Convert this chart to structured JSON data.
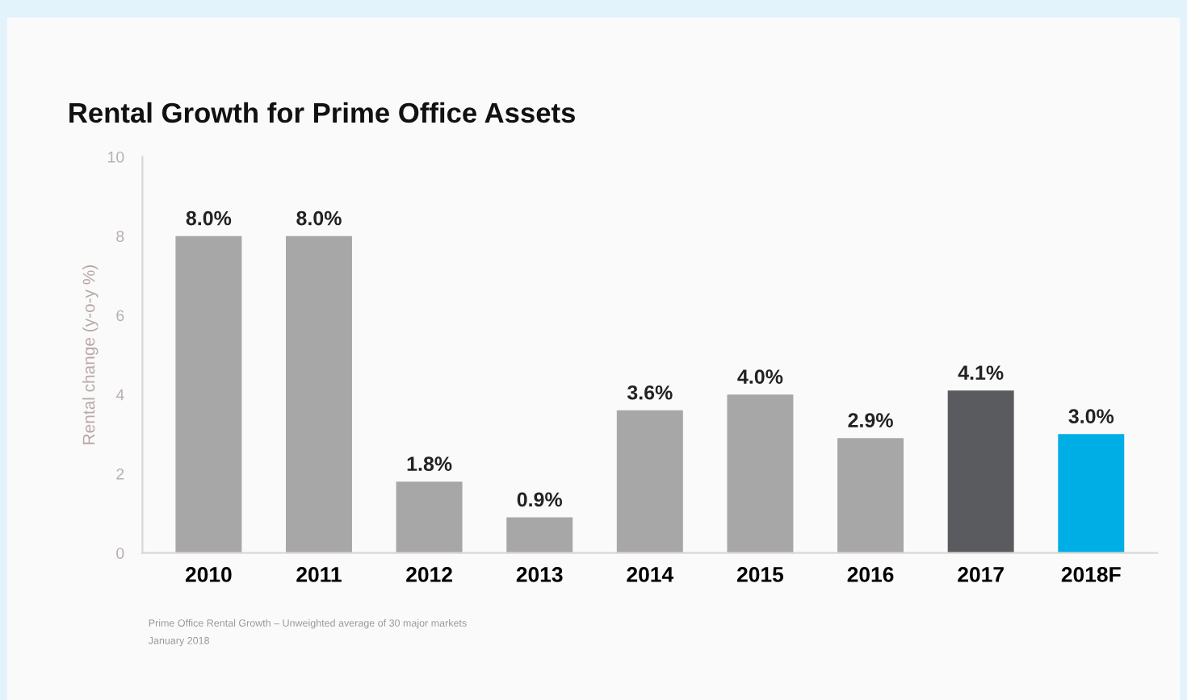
{
  "chart_data": {
    "type": "bar",
    "title": "Rental Growth for Prime Office Assets",
    "ylabel": "Rental change (y-o-y %)",
    "categories": [
      "2010",
      "2011",
      "2012",
      "2013",
      "2014",
      "2015",
      "2016",
      "2017",
      "2018F"
    ],
    "values": [
      8.0,
      8.0,
      1.8,
      0.9,
      3.6,
      4.0,
      2.9,
      4.1,
      3.0
    ],
    "value_labels": [
      "8.0%",
      "8.0%",
      "1.8%",
      "0.9%",
      "3.6%",
      "4.0%",
      "2.9%",
      "4.1%",
      "3.0%"
    ],
    "colors": [
      "#a7a7a7",
      "#a7a7a7",
      "#a7a7a7",
      "#a7a7a7",
      "#a7a7a7",
      "#a7a7a7",
      "#a7a7a7",
      "#5a5b5e",
      "#00aee6"
    ],
    "ylim": [
      0,
      10
    ],
    "yticks": [
      0,
      2,
      4,
      6,
      8,
      10
    ],
    "grid": false,
    "annotations": [
      "Prime Office Rental Growth – Unweighted average of 30 major markets",
      "January 2018"
    ]
  }
}
